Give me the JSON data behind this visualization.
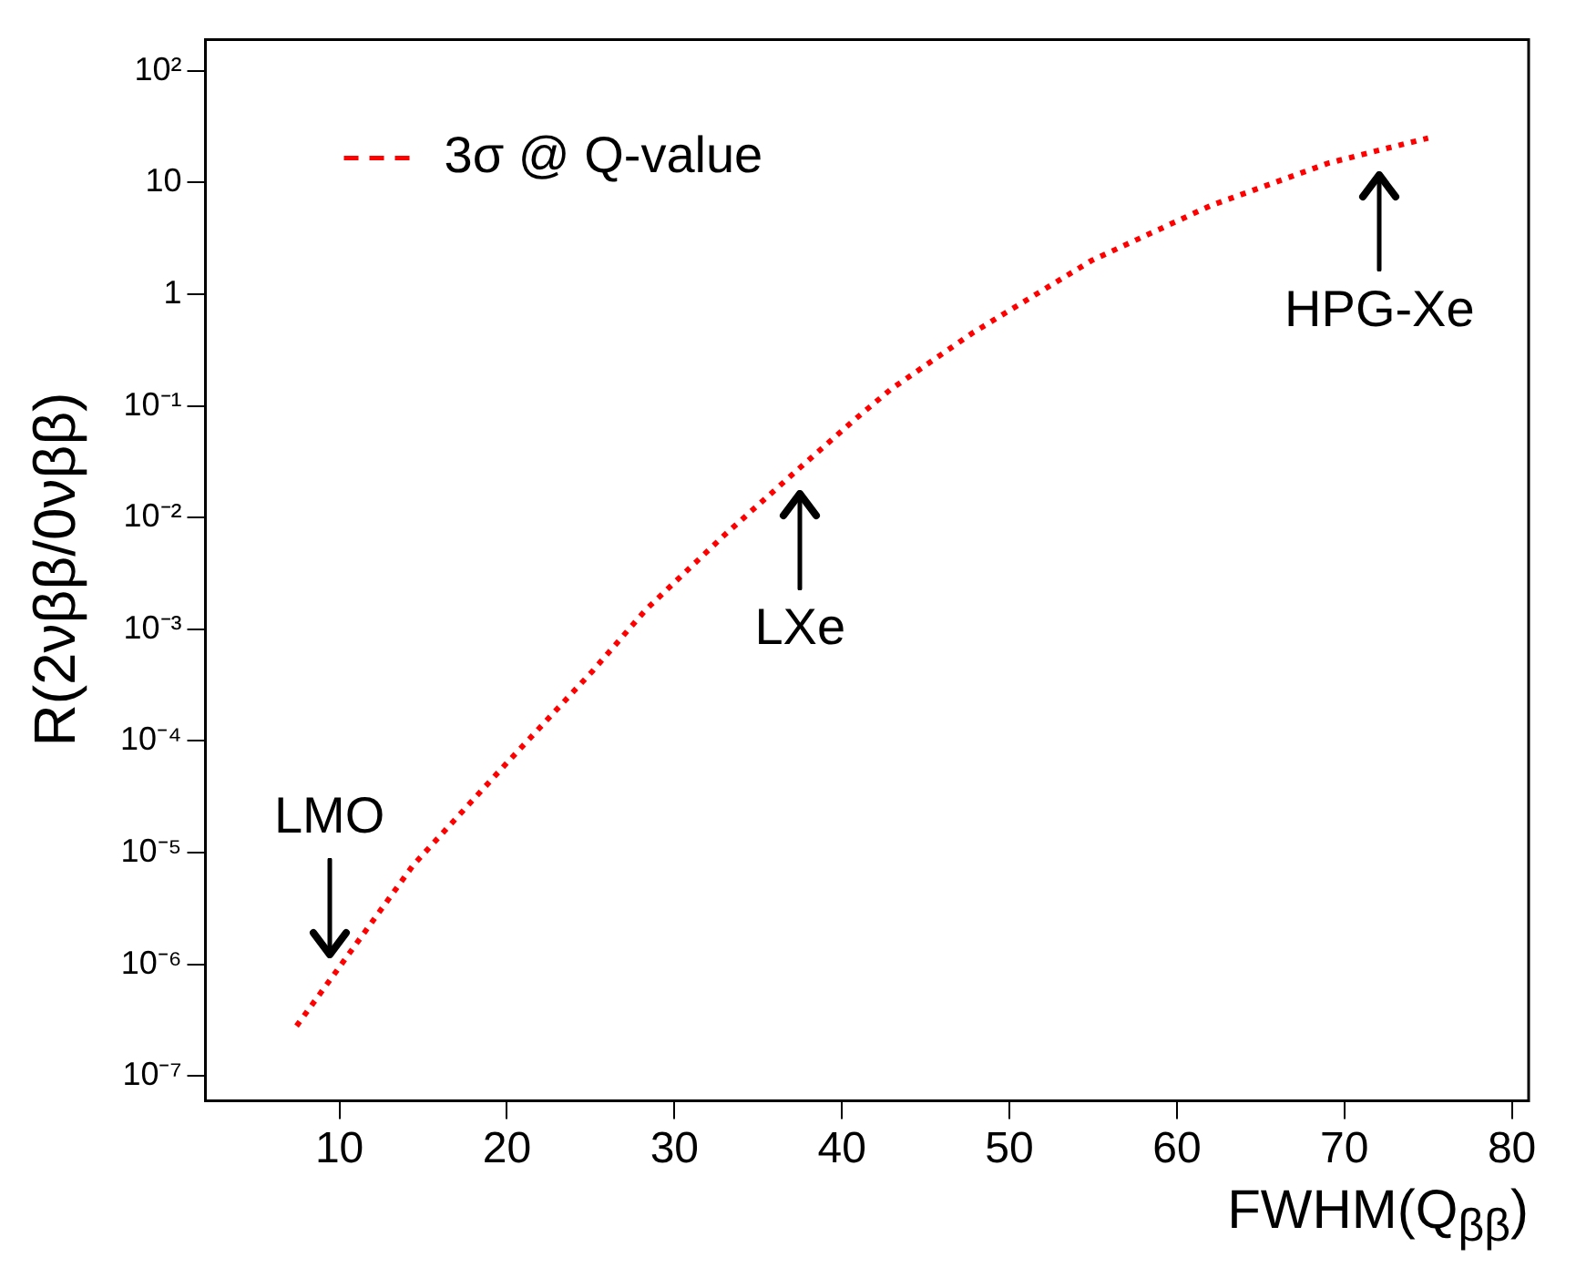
{
  "chart_data": {
    "type": "line",
    "xlabel": "FWHM(Q$_{ββ}$)",
    "ylabel": "R(2νββ/0νββ)",
    "x": [
      7.44,
      9.4,
      14.4,
      19.8,
      25.1,
      28.3,
      33,
      37.5,
      40.7,
      42.9,
      47.8,
      54.9,
      62.0,
      69.1,
      72.1,
      75.0
    ],
    "series": [
      {
        "name": "3σ @ Q-value",
        "color": "#ff0000",
        "line_style": "dotted",
        "values": [
          2.8e-07,
          7.1e-07,
          7.7e-06,
          5.9e-05,
          0.00042,
          0.0015,
          0.007,
          0.028,
          0.074,
          0.14,
          0.45,
          2.0,
          6.2,
          15,
          19.5,
          25
        ]
      }
    ],
    "log": "y",
    "xlim": [
      2,
      81
    ],
    "ylim": [
      6e-08,
      190
    ],
    "xticks": [
      10,
      20,
      30,
      40,
      50,
      60,
      70,
      80
    ],
    "yticks": [
      {
        "value": 100,
        "label": "10²"
      },
      10,
      1,
      {
        "value": 0.1,
        "label": "10⁻¹"
      },
      {
        "value": 0.01,
        "label": "10⁻²"
      },
      {
        "value": 0.001,
        "label": "10⁻³"
      },
      {
        "value": 0.0001,
        "label": "10⁻⁴"
      },
      {
        "value": 1e-05,
        "label": "10⁻⁵"
      },
      {
        "value": 1e-06,
        "label": "10⁻⁶"
      },
      {
        "value": 1e-07,
        "label": "10⁻⁷"
      }
    ],
    "grid": false,
    "legend": "top left",
    "marker": "none",
    "annotations": [
      {
        "text": "LMO",
        "x": 9.4,
        "y": 7.1e-07
      },
      {
        "text": "LXe",
        "x": 37.5,
        "y": 0.028
      },
      {
        "text": "HPG-Xe",
        "x": 72.1,
        "y": 19.5
      }
    ]
  }
}
